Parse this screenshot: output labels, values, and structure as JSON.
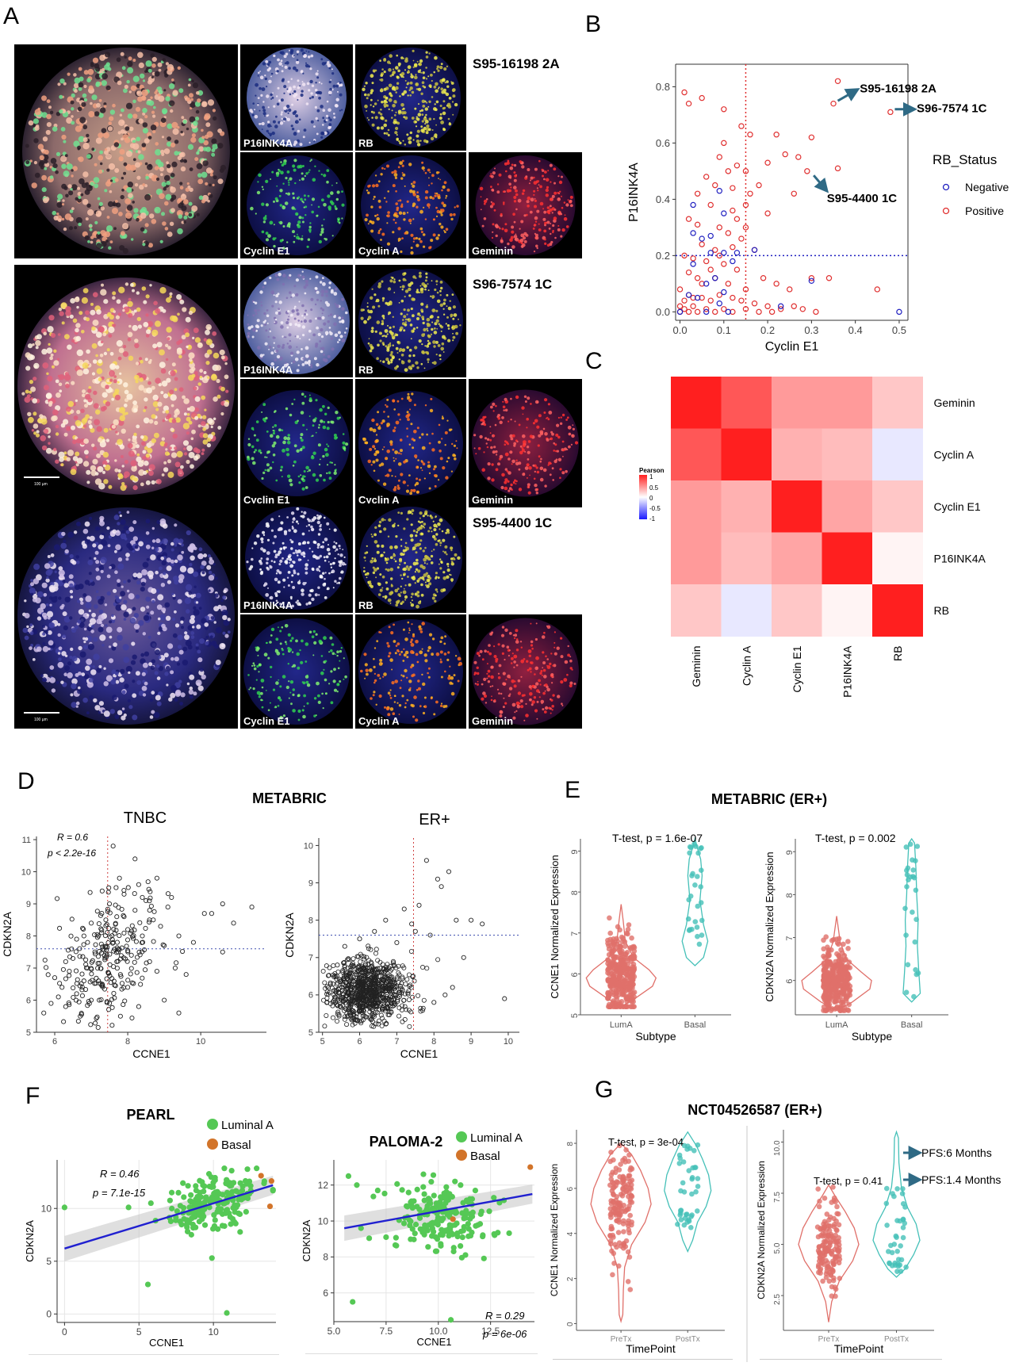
{
  "panel_letters": {
    "a": "A",
    "b": "B",
    "c": "C",
    "d": "D",
    "e": "E",
    "f": "F",
    "g": "G"
  },
  "panel_a": {
    "samples": [
      "S95-16198 2A",
      "S96-7574 1C",
      "S95-4400 1C"
    ],
    "channel_labels": [
      "P16INK4A",
      "RB",
      "Cyclin E1",
      "Cyclin A",
      "Geminin"
    ],
    "scale_labels": [
      "100 µm",
      "100 µm"
    ]
  },
  "legend_b": {
    "title": "RB_Status",
    "items": [
      "Negative",
      "Positive"
    ]
  },
  "heat_legend": {
    "title": "Pearson",
    "ticks": [
      "1",
      "0.5",
      "0",
      "-0.5",
      "-1"
    ]
  },
  "titles": {
    "d_main": "METABRIC",
    "d_tnbc": "TNBC",
    "d_er": "ER+",
    "e_main": "METABRIC (ER+)",
    "f_pearl": "PEARL",
    "f_paloma": "PALOMA-2",
    "g_main": "NCT04526587 (ER+)"
  },
  "stats": {
    "d_r": "R = 0.6",
    "d_p": "p < 2.2e-16",
    "e1": "T-test, p = 1.6e-07",
    "e2": "T-test, p = 0.002",
    "f1_r": "R = 0.46",
    "f1_p": "p = 7.1e-15",
    "f2_r": "R = 0.29",
    "f2_p": "p = 6e-06",
    "g1": "T-test, p = 3e-04",
    "g2": "T-test, p = 0.41"
  },
  "legend_f": [
    "Luminal A",
    "Basal"
  ],
  "colors": {
    "pos": "#e03030",
    "neg": "#2020c0",
    "lumA": "#55c855",
    "basal": "#d2742a",
    "pre": "#e0706a",
    "post": "#45c0b8",
    "trend": "#2020d0",
    "arrow": "#2f6a85"
  },
  "chart_data": [
    {
      "panel": "B",
      "type": "scatter",
      "xlabel": "Cyclin E1",
      "ylabel": "P16INK4A",
      "xlim": [
        -0.01,
        0.52
      ],
      "ylim": [
        -0.03,
        0.88
      ],
      "xticks": [
        "0.0",
        "0.1",
        "0.2",
        "0.3",
        "0.4",
        "0.5"
      ],
      "yticks": [
        "0.0",
        "0.2",
        "0.4",
        "0.6",
        "0.8"
      ],
      "cutoffs": {
        "x": 0.15,
        "y": 0.2
      },
      "annotations": [
        "S95-16198 2A",
        "S96-7574 1C",
        "S95-4400 1C"
      ],
      "series": [
        {
          "name": "Positive",
          "points": [
            [
              0.36,
              0.82
            ],
            [
              0.35,
              0.74
            ],
            [
              0.48,
              0.71
            ],
            [
              0.29,
              0.5
            ],
            [
              0.36,
              0.51
            ],
            [
              0.01,
              0.78
            ],
            [
              0.05,
              0.76
            ],
            [
              0.02,
              0.74
            ],
            [
              0.1,
              0.72
            ],
            [
              0.14,
              0.66
            ],
            [
              0.1,
              0.6
            ],
            [
              0.16,
              0.63
            ],
            [
              0.22,
              0.63
            ],
            [
              0.27,
              0.55
            ],
            [
              0.24,
              0.56
            ],
            [
              0.2,
              0.53
            ],
            [
              0.3,
              0.62
            ],
            [
              0.09,
              0.55
            ],
            [
              0.11,
              0.5
            ],
            [
              0.13,
              0.52
            ],
            [
              0.06,
              0.48
            ],
            [
              0.08,
              0.45
            ],
            [
              0.12,
              0.44
            ],
            [
              0.16,
              0.42
            ],
            [
              0.18,
              0.45
            ],
            [
              0.04,
              0.42
            ],
            [
              0.07,
              0.38
            ],
            [
              0.12,
              0.36
            ],
            [
              0.15,
              0.38
            ],
            [
              0.2,
              0.35
            ],
            [
              0.26,
              0.42
            ],
            [
              0.02,
              0.33
            ],
            [
              0.04,
              0.31
            ],
            [
              0.09,
              0.3
            ],
            [
              0.11,
              0.28
            ],
            [
              0.14,
              0.26
            ],
            [
              0.05,
              0.24
            ],
            [
              0.08,
              0.22
            ],
            [
              0.12,
              0.23
            ],
            [
              0.17,
              0.22
            ],
            [
              0.01,
              0.2
            ],
            [
              0.03,
              0.19
            ],
            [
              0.06,
              0.18
            ],
            [
              0.1,
              0.17
            ],
            [
              0.13,
              0.15
            ],
            [
              0.02,
              0.14
            ],
            [
              0.04,
              0.12
            ],
            [
              0.08,
              0.12
            ],
            [
              0.11,
              0.1
            ],
            [
              0.15,
              0.08
            ],
            [
              0.19,
              0.12
            ],
            [
              0.22,
              0.1
            ],
            [
              0.25,
              0.08
            ],
            [
              0.3,
              0.12
            ],
            [
              0.34,
              0.12
            ],
            [
              0.45,
              0.08
            ],
            [
              0.0,
              0.08
            ],
            [
              0.02,
              0.06
            ],
            [
              0.05,
              0.05
            ],
            [
              0.07,
              0.04
            ],
            [
              0.09,
              0.06
            ],
            [
              0.12,
              0.05
            ],
            [
              0.14,
              0.04
            ],
            [
              0.17,
              0.03
            ],
            [
              0.2,
              0.02
            ],
            [
              0.23,
              0.01
            ],
            [
              0.26,
              0.02
            ],
            [
              0.28,
              0.01
            ],
            [
              0.31,
              0.0
            ],
            [
              0.0,
              0.02
            ],
            [
              0.01,
              0.01
            ],
            [
              0.02,
              0.0
            ],
            [
              0.03,
              0.02
            ],
            [
              0.04,
              0.0
            ],
            [
              0.06,
              0.01
            ],
            [
              0.08,
              0.0
            ],
            [
              0.1,
              0.01
            ],
            [
              0.12,
              0.0
            ],
            [
              0.15,
              0.01
            ],
            [
              0.18,
              0.0
            ],
            [
              0.21,
              0.0
            ],
            [
              0.0,
              0.0
            ],
            [
              0.01,
              0.04
            ],
            [
              0.03,
              0.05
            ],
            [
              0.05,
              0.1
            ],
            [
              0.07,
              0.15
            ],
            [
              0.09,
              0.2
            ],
            [
              0.13,
              0.33
            ],
            [
              0.15,
              0.5
            ],
            [
              0.15,
              0.3
            ]
          ]
        },
        {
          "name": "Negative",
          "points": [
            [
              0.5,
              0.0
            ],
            [
              0.3,
              0.11
            ],
            [
              0.23,
              0.02
            ],
            [
              0.17,
              0.22
            ],
            [
              0.13,
              0.21
            ],
            [
              0.1,
              0.21
            ],
            [
              0.07,
              0.21
            ],
            [
              0.05,
              0.26
            ],
            [
              0.07,
              0.27
            ],
            [
              0.03,
              0.28
            ],
            [
              0.1,
              0.35
            ],
            [
              0.09,
              0.43
            ],
            [
              0.03,
              0.38
            ],
            [
              0.04,
              0.05
            ],
            [
              0.06,
              0.0
            ],
            [
              0.09,
              0.03
            ],
            [
              0.08,
              0.12
            ],
            [
              0.11,
              0.0
            ],
            [
              0.0,
              0.0
            ],
            [
              0.03,
              0.17
            ],
            [
              0.12,
              0.18
            ],
            [
              0.06,
              0.1
            ],
            [
              0.02,
              0.06
            ],
            [
              0.1,
              0.07
            ]
          ]
        }
      ]
    },
    {
      "panel": "C",
      "type": "heatmap",
      "rows": [
        "Geminin",
        "Cyclin A",
        "Cyclin E1",
        "P16INK4A",
        "RB"
      ],
      "cols": [
        "Geminin",
        "Cyclin A",
        "Cyclin E1",
        "P16INK4A",
        "RB"
      ],
      "values": [
        [
          1,
          0.75,
          0.45,
          0.45,
          0.25
        ],
        [
          0.75,
          1,
          0.35,
          0.3,
          -0.1
        ],
        [
          0.45,
          0.35,
          1,
          0.4,
          0.25
        ],
        [
          0.45,
          0.3,
          0.4,
          1,
          0.05
        ],
        [
          0.25,
          -0.1,
          0.25,
          0.05,
          1
        ]
      ]
    },
    {
      "panel": "D1",
      "type": "scatter",
      "title": "TNBC",
      "xlabel": "CCNE1",
      "ylabel": "CDKN2A",
      "xlim": [
        5.5,
        11.8
      ],
      "ylim": [
        5,
        11.1
      ],
      "xticks": [
        "6",
        "8",
        "10"
      ],
      "yticks": [
        "5",
        "6",
        "7",
        "8",
        "9",
        "10",
        "11"
      ],
      "cutoffs": {
        "x": 7.45,
        "y": 7.6
      },
      "points": [
        [
          5.7,
          5.6
        ],
        [
          5.9,
          5.9
        ],
        [
          6.1,
          6.1
        ],
        [
          6.2,
          6.4
        ],
        [
          6.3,
          5.8
        ],
        [
          6.4,
          6.9
        ],
        [
          6.5,
          7.3
        ],
        [
          6.6,
          6.2
        ],
        [
          6.7,
          5.5
        ],
        [
          6.8,
          6.6
        ],
        [
          6.9,
          7.0
        ],
        [
          7.0,
          6.0
        ],
        [
          7.1,
          7.5
        ],
        [
          7.2,
          8.0
        ],
        [
          7.3,
          6.5
        ],
        [
          7.4,
          8.5
        ],
        [
          7.5,
          9.0
        ],
        [
          7.5,
          5.9
        ],
        [
          7.6,
          7.8
        ],
        [
          7.7,
          8.6
        ],
        [
          7.8,
          6.8
        ],
        [
          7.9,
          9.3
        ],
        [
          8.0,
          8.2
        ],
        [
          8.1,
          7.4
        ],
        [
          8.2,
          8.8
        ],
        [
          8.3,
          9.6
        ],
        [
          8.4,
          8.0
        ],
        [
          8.5,
          9.1
        ],
        [
          8.6,
          7.2
        ],
        [
          8.7,
          8.5
        ],
        [
          8.8,
          9.8
        ],
        [
          8.9,
          8.3
        ],
        [
          9.0,
          7.7
        ],
        [
          9.1,
          8.9
        ],
        [
          9.2,
          9.2
        ],
        [
          9.3,
          7.0
        ],
        [
          9.4,
          8.0
        ],
        [
          9.6,
          6.8
        ],
        [
          9.8,
          7.8
        ],
        [
          10.1,
          8.7
        ],
        [
          10.3,
          8.7
        ],
        [
          10.6,
          9.0
        ],
        [
          10.9,
          8.4
        ],
        [
          11.4,
          8.9
        ],
        [
          10.6,
          7.5
        ],
        [
          7.6,
          10.8
        ],
        [
          8.2,
          10.4
        ],
        [
          6.8,
          8.0
        ],
        [
          7.0,
          8.4
        ],
        [
          7.3,
          9.4
        ],
        [
          6.6,
          7.9
        ],
        [
          7.8,
          5.5
        ],
        [
          8.3,
          5.8
        ],
        [
          9.0,
          6.0
        ],
        [
          9.4,
          5.6
        ],
        [
          6.0,
          6.7
        ],
        [
          6.3,
          7.2
        ],
        [
          7.9,
          8.6
        ],
        [
          8.4,
          9.2
        ],
        [
          7.7,
          7.2
        ],
        [
          8.6,
          8.8
        ],
        [
          8.0,
          6.4
        ],
        [
          7.2,
          6.6
        ],
        [
          6.9,
          7.8
        ],
        [
          8.8,
          6.9
        ]
      ]
    },
    {
      "panel": "D2",
      "type": "scatter",
      "title": "ER+",
      "xlabel": "CCNE1",
      "ylabel": "CDKN2A",
      "xlim": [
        4.9,
        10.3
      ],
      "ylim": [
        5,
        10.2
      ],
      "xticks": [
        "5",
        "6",
        "7",
        "8",
        "9",
        "10"
      ],
      "yticks": [
        "5",
        "6",
        "7",
        "8",
        "9",
        "10"
      ],
      "cutoffs": {
        "x": 7.45,
        "y": 7.6
      },
      "points": [
        [
          7.8,
          9.6
        ],
        [
          8.1,
          9.1
        ],
        [
          8.4,
          9.3
        ],
        [
          8.6,
          8.0
        ],
        [
          8.8,
          7.0
        ],
        [
          7.6,
          8.4
        ],
        [
          7.4,
          7.9
        ],
        [
          7.2,
          8.3
        ],
        [
          9.3,
          7.9
        ],
        [
          9.0,
          8.0
        ],
        [
          9.9,
          5.9
        ],
        [
          7.5,
          7.7
        ],
        [
          8.2,
          8.9
        ],
        [
          7.9,
          7.6
        ],
        [
          6.4,
          7.7
        ],
        [
          6.7,
          8.0
        ],
        [
          5.6,
          7.3
        ],
        [
          6.0,
          7.5
        ],
        [
          7.0,
          7.4
        ],
        [
          5.4,
          6.8
        ],
        [
          8.5,
          6.2
        ],
        [
          8.0,
          5.8
        ],
        [
          8.3,
          6.0
        ]
      ]
    },
    {
      "panel": "E1",
      "type": "violin",
      "ylabel": "CCNE1 Normalized Expression",
      "xlabel": "Subtype",
      "categories": [
        "LumA",
        "Basal"
      ],
      "ylim": [
        5,
        9.3
      ],
      "yticks": [
        "5",
        "6",
        "7",
        "8",
        "9"
      ]
    },
    {
      "panel": "E2",
      "type": "violin",
      "ylabel": "CDKN2A Normalized Expression",
      "xlabel": "Subtype",
      "categories": [
        "LumA",
        "Basal"
      ],
      "ylim": [
        5.2,
        9.3
      ],
      "yticks": [
        "6",
        "7",
        "8",
        "9"
      ]
    },
    {
      "panel": "F1",
      "type": "scatter",
      "title": "PEARL",
      "xlabel": "CCNE1",
      "ylabel": "CDKN2A",
      "xlim": [
        -0.5,
        14.2
      ],
      "ylim": [
        -0.8,
        14.6
      ],
      "xticks": [
        "0",
        "5",
        "10"
      ],
      "yticks": [
        "0",
        "5",
        "10"
      ],
      "trend": [
        [
          0,
          6.2
        ],
        [
          14,
          12.2
        ]
      ]
    },
    {
      "panel": "F2",
      "type": "scatter",
      "title": "PALOMA-2",
      "xlabel": "CCNE1",
      "ylabel": "CDKN2A",
      "xlim": [
        5,
        14.6
      ],
      "ylim": [
        4.4,
        13.4
      ],
      "xticks": [
        "5.0",
        "7.5",
        "10.0",
        "12.5"
      ],
      "yticks": [
        "6",
        "8",
        "10",
        "12"
      ],
      "trend": [
        [
          5.5,
          9.6
        ],
        [
          14.5,
          11.5
        ]
      ]
    },
    {
      "panel": "G1",
      "type": "violin",
      "ylabel": "CCNE1 Normalized Expression",
      "xlabel": "TimePoint",
      "categories": [
        "PreTx",
        "PostTx"
      ],
      "ylim": [
        -0.3,
        8.6
      ],
      "yticks": [
        "0",
        "2",
        "4",
        "6",
        "8"
      ]
    },
    {
      "panel": "G2",
      "type": "violin",
      "ylabel": "CDKN2A Normalized Expression",
      "xlabel": "TimePoint",
      "categories": [
        "PreTx",
        "PostTx"
      ],
      "ylim": [
        0.8,
        10.6
      ],
      "yticks": [
        "2.5",
        "5.0",
        "7.5",
        "10.0"
      ],
      "annotations": [
        "PFS:6 Months",
        "PFS:1.4 Months"
      ]
    }
  ]
}
